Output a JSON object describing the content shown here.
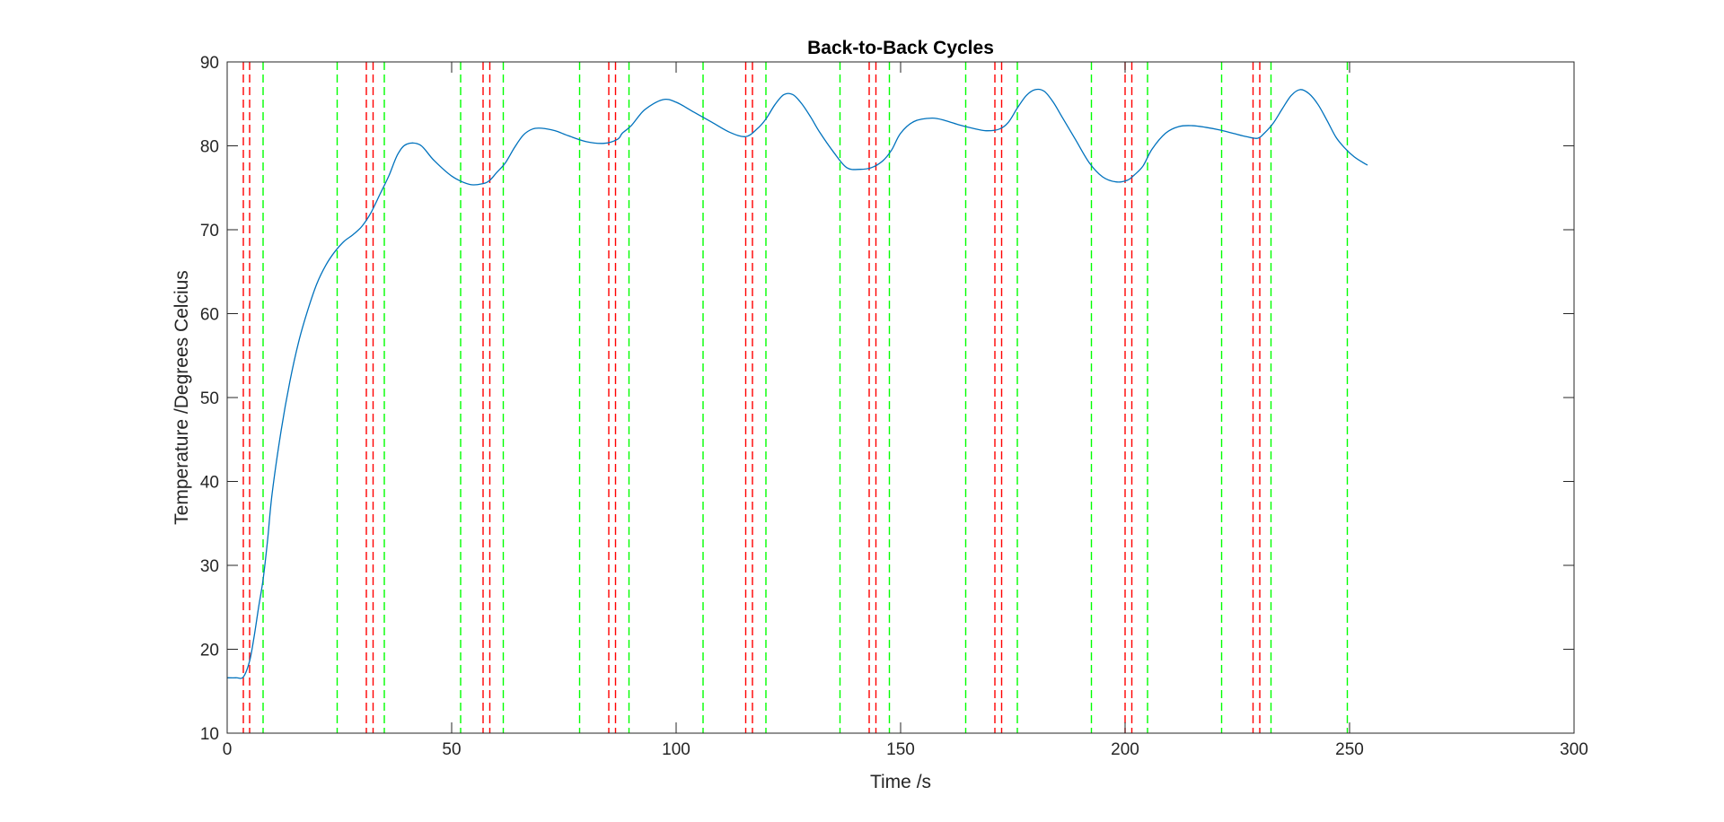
{
  "chart_data": {
    "type": "line",
    "title": "Back-to-Back Cycles",
    "xlabel": "Time /s",
    "ylabel": "Temperature /Degrees Celcius",
    "xlim": [
      0,
      300
    ],
    "ylim": [
      10,
      90
    ],
    "xticks": [
      0,
      50,
      100,
      150,
      200,
      250,
      300
    ],
    "yticks": [
      10,
      20,
      30,
      40,
      50,
      60,
      70,
      80,
      90
    ],
    "xtick_labels": [
      "0",
      "50",
      "100",
      "150",
      "200",
      "250",
      "300"
    ],
    "ytick_labels": [
      "10",
      "20",
      "30",
      "40",
      "50",
      "60",
      "70",
      "80",
      "90"
    ],
    "grid": false,
    "series": [
      {
        "color": "#0072bd",
        "style": "solid",
        "x": [
          0,
          2,
          3.6,
          5,
          6,
          7,
          8,
          9,
          10,
          12,
          14,
          16,
          18,
          20,
          22,
          24,
          26,
          28,
          30,
          32,
          34,
          36,
          38,
          40,
          43,
          46,
          50,
          54,
          57,
          58.5,
          60,
          62,
          64,
          66,
          68,
          70,
          73,
          76,
          80,
          84,
          87,
          88,
          90,
          93,
          97,
          100,
          104,
          108,
          112,
          115.5,
          118,
          120,
          122,
          124,
          126,
          128,
          130,
          132,
          135,
          138,
          141,
          143.5,
          146,
          148,
          150,
          153,
          157,
          160,
          163,
          166,
          169,
          172,
          174,
          176,
          178,
          180,
          182,
          184,
          186,
          189,
          192,
          195,
          198,
          200.5,
          202,
          204,
          206,
          209,
          212,
          215,
          218,
          221,
          224,
          227,
          229.5,
          231,
          233,
          235,
          237,
          239,
          241,
          243,
          245,
          247,
          249,
          251,
          253,
          254
        ],
        "y": [
          16.6,
          16.6,
          16.7,
          18.6,
          21.5,
          25.0,
          28.3,
          33.0,
          38.5,
          46.0,
          52.0,
          56.8,
          60.5,
          63.6,
          65.8,
          67.4,
          68.6,
          69.4,
          70.4,
          72.0,
          74.2,
          76.4,
          79.0,
          80.2,
          80.1,
          78.3,
          76.4,
          75.4,
          75.5,
          75.9,
          76.8,
          78.0,
          79.8,
          81.3,
          82.0,
          82.1,
          81.8,
          81.2,
          80.5,
          80.3,
          80.8,
          81.5,
          82.4,
          84.3,
          85.5,
          85.2,
          84.0,
          82.8,
          81.6,
          81.1,
          82.0,
          83.2,
          84.9,
          86.1,
          86.1,
          85.0,
          83.4,
          81.6,
          79.3,
          77.4,
          77.2,
          77.4,
          78.2,
          79.5,
          81.5,
          82.9,
          83.3,
          83.0,
          82.5,
          82.1,
          81.8,
          82.0,
          82.8,
          84.5,
          86.0,
          86.7,
          86.5,
          85.2,
          83.4,
          80.7,
          78.0,
          76.3,
          75.7,
          75.9,
          76.5,
          77.6,
          79.6,
          81.5,
          82.3,
          82.4,
          82.2,
          81.9,
          81.5,
          81.1,
          80.9,
          81.5,
          82.7,
          84.4,
          86.0,
          86.7,
          86.2,
          84.9,
          83.0,
          81.0,
          79.7,
          78.7,
          78.0,
          77.7
        ]
      }
    ],
    "red_vertical_lines": [
      3.6,
      5.0,
      31.0,
      32.5,
      57.0,
      58.5,
      85.0,
      86.5,
      115.5,
      117.0,
      143.0,
      144.5,
      171.0,
      172.5,
      200.0,
      201.5,
      228.5,
      230.0
    ],
    "red_line_color": "#ff0000",
    "green_vertical_lines": [
      8.0,
      24.5,
      35.0,
      52.0,
      61.5,
      78.5,
      89.5,
      106.0,
      120.0,
      136.5,
      147.5,
      164.5,
      176.0,
      192.5,
      205.0,
      221.5,
      232.5,
      249.5
    ],
    "green_line_color": "#00ff00",
    "axis_color": "#262626"
  }
}
